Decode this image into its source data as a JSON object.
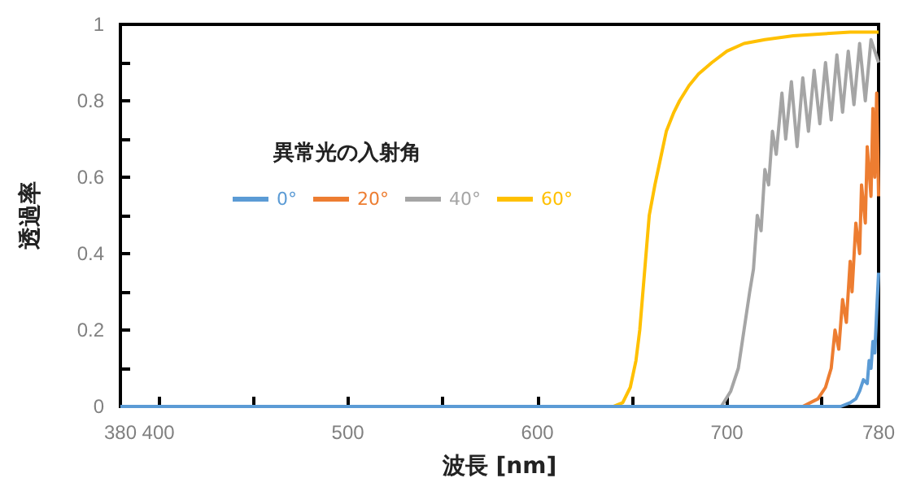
{
  "chart_data": {
    "type": "line",
    "xlabel": "波長 [nm]",
    "ylabel": "透過率",
    "legend_title": "異常光の入射角",
    "xlim": [
      380,
      780
    ],
    "xticks": [
      380,
      400,
      {
        "value": 450,
        "label": null
      },
      500,
      {
        "value": 550,
        "label": null
      },
      600,
      {
        "value": 650,
        "label": null
      },
      700,
      {
        "value": 750,
        "label": null
      },
      780
    ],
    "ylim": [
      0,
      1
    ],
    "yticks": [
      0,
      {
        "value": 0.1,
        "label": null
      },
      0.2,
      {
        "value": 0.3,
        "label": null
      },
      0.4,
      {
        "value": 0.5,
        "label": null
      },
      0.6,
      {
        "value": 0.7,
        "label": null
      },
      0.8,
      {
        "value": 0.9,
        "label": null
      },
      1
    ],
    "grid": false,
    "legend": "left",
    "marker": "none",
    "line_style": "solid",
    "series": [
      {
        "name": "0°",
        "color": "#5b9bd5",
        "x": [
          380,
          760,
          765,
          768,
          770,
          772,
          774,
          775,
          776,
          777,
          778,
          779,
          780
        ],
        "values": [
          0,
          0,
          0.01,
          0.02,
          0.04,
          0.07,
          0.06,
          0.12,
          0.1,
          0.17,
          0.14,
          0.25,
          0.35
        ]
      },
      {
        "name": "20°",
        "color": "#ed7d31",
        "x": [
          380,
          740,
          748,
          752,
          755,
          757,
          759,
          761,
          763,
          765,
          766,
          768,
          770,
          771,
          773,
          774,
          776,
          777,
          778,
          779,
          780
        ],
        "values": [
          0,
          0,
          0.02,
          0.05,
          0.1,
          0.2,
          0.15,
          0.28,
          0.22,
          0.38,
          0.3,
          0.48,
          0.4,
          0.58,
          0.48,
          0.68,
          0.55,
          0.78,
          0.6,
          0.82,
          0.55
        ]
      },
      {
        "name": "40°",
        "color": "#a5a5a5",
        "x": [
          380,
          697,
          702,
          706,
          709,
          712,
          714,
          716,
          718,
          720,
          722,
          724,
          726,
          729,
          731,
          734,
          737,
          740,
          743,
          746,
          749,
          752,
          755,
          758,
          761,
          764,
          767,
          770,
          773,
          776,
          780
        ],
        "values": [
          0,
          0,
          0.04,
          0.1,
          0.2,
          0.3,
          0.36,
          0.5,
          0.46,
          0.62,
          0.58,
          0.72,
          0.66,
          0.82,
          0.7,
          0.85,
          0.68,
          0.86,
          0.72,
          0.88,
          0.74,
          0.9,
          0.75,
          0.92,
          0.77,
          0.93,
          0.79,
          0.95,
          0.8,
          0.96,
          0.9
        ]
      },
      {
        "name": "60°",
        "color": "#ffc000",
        "x": [
          380,
          640,
          645,
          649,
          652,
          654,
          657,
          659,
          662,
          665,
          668,
          672,
          675,
          680,
          685,
          692,
          700,
          709,
          720,
          735,
          750,
          765,
          780
        ],
        "values": [
          0,
          0,
          0.01,
          0.05,
          0.12,
          0.2,
          0.38,
          0.5,
          0.58,
          0.65,
          0.72,
          0.77,
          0.8,
          0.84,
          0.87,
          0.9,
          0.93,
          0.95,
          0.96,
          0.97,
          0.975,
          0.98,
          0.98
        ]
      }
    ]
  }
}
